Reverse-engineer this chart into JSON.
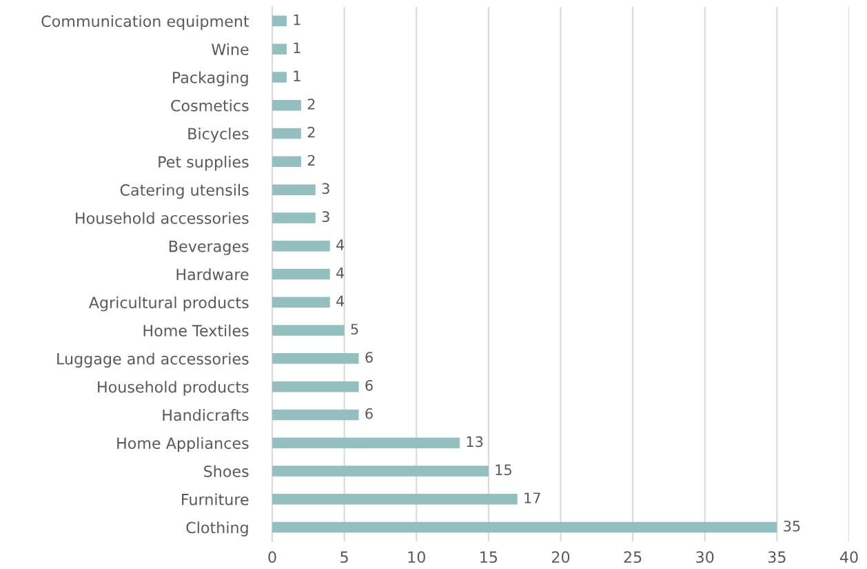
{
  "chart_data": {
    "type": "bar",
    "orientation": "horizontal",
    "categories": [
      "Communication equipment",
      "Wine",
      "Packaging",
      "Cosmetics",
      "Bicycles",
      "Pet supplies",
      "Catering utensils",
      "Household accessories",
      "Beverages",
      "Hardware",
      "Agricultural products",
      "Home Textiles",
      "Luggage and accessories",
      "Household products",
      "Handicrafts",
      "Home Appliances",
      "Shoes",
      "Furniture",
      "Clothing"
    ],
    "values": [
      1,
      1,
      1,
      2,
      2,
      2,
      3,
      3,
      4,
      4,
      4,
      5,
      6,
      6,
      6,
      13,
      15,
      17,
      35
    ],
    "color": "#93bfbf",
    "xlim": [
      0,
      40
    ],
    "xticks": [
      0,
      5,
      10,
      15,
      20,
      25,
      30,
      35,
      40
    ],
    "grid": "x",
    "data_labels": true
  }
}
